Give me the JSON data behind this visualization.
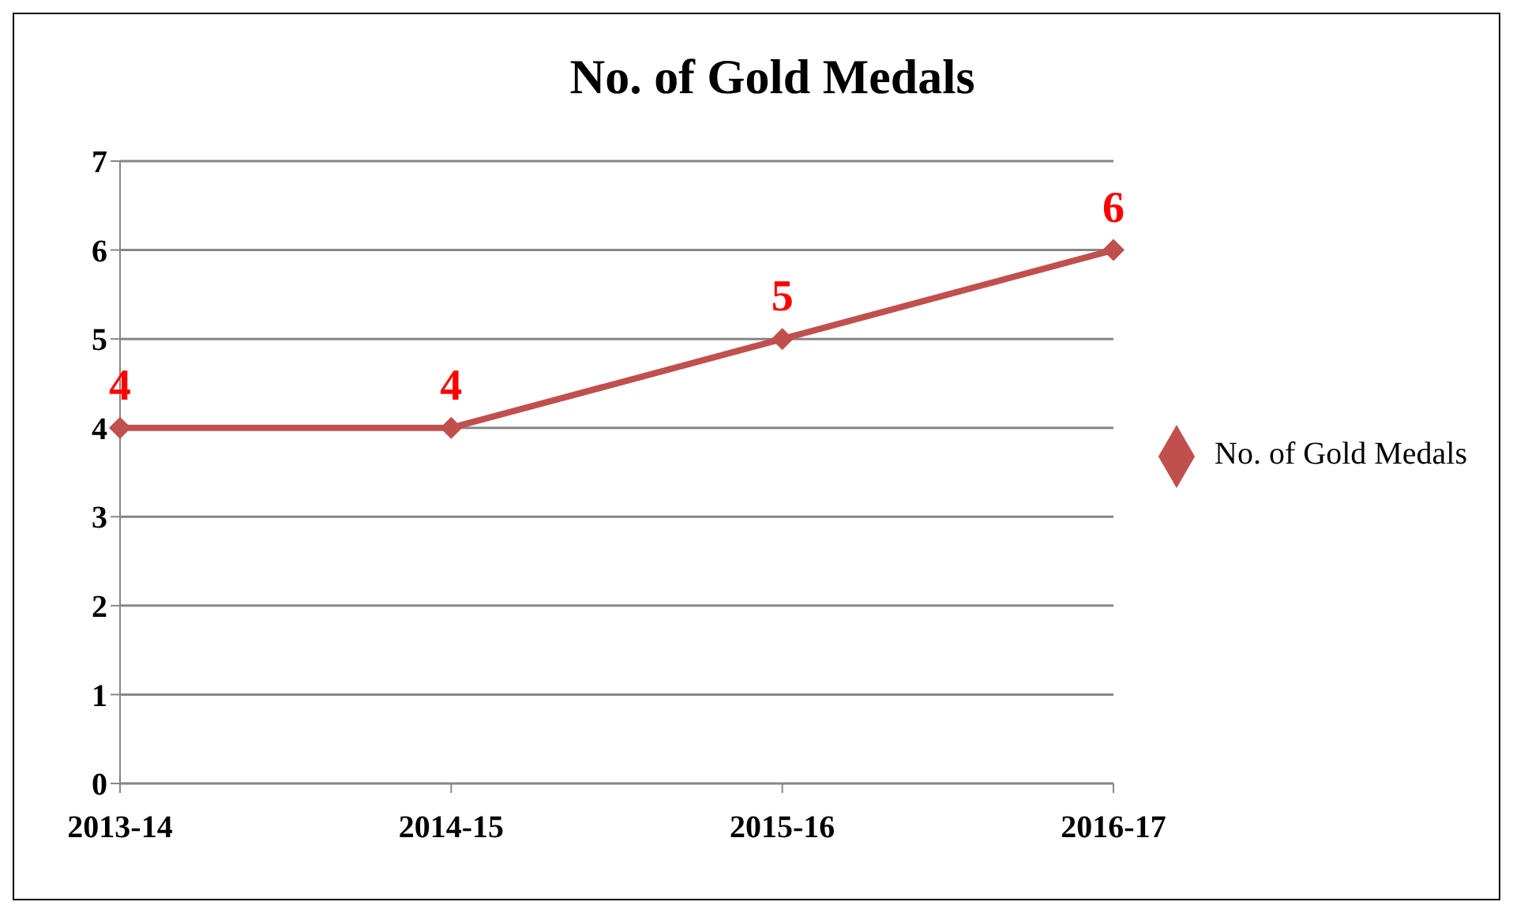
{
  "chart_data": {
    "type": "line",
    "title": "No. of Gold Medals",
    "categories": [
      "2013-14",
      "2014-15",
      "2015-16",
      "2016-17"
    ],
    "series": [
      {
        "name": "No. of Gold Medals",
        "color": "#c0504d",
        "values": [
          4,
          4,
          5,
          6
        ]
      }
    ],
    "ylim": [
      0,
      7
    ],
    "yticks": [
      0,
      1,
      2,
      3,
      4,
      5,
      6,
      7
    ],
    "grid": "y",
    "legend": "right",
    "marker": "diamond",
    "data_labels": true
  }
}
